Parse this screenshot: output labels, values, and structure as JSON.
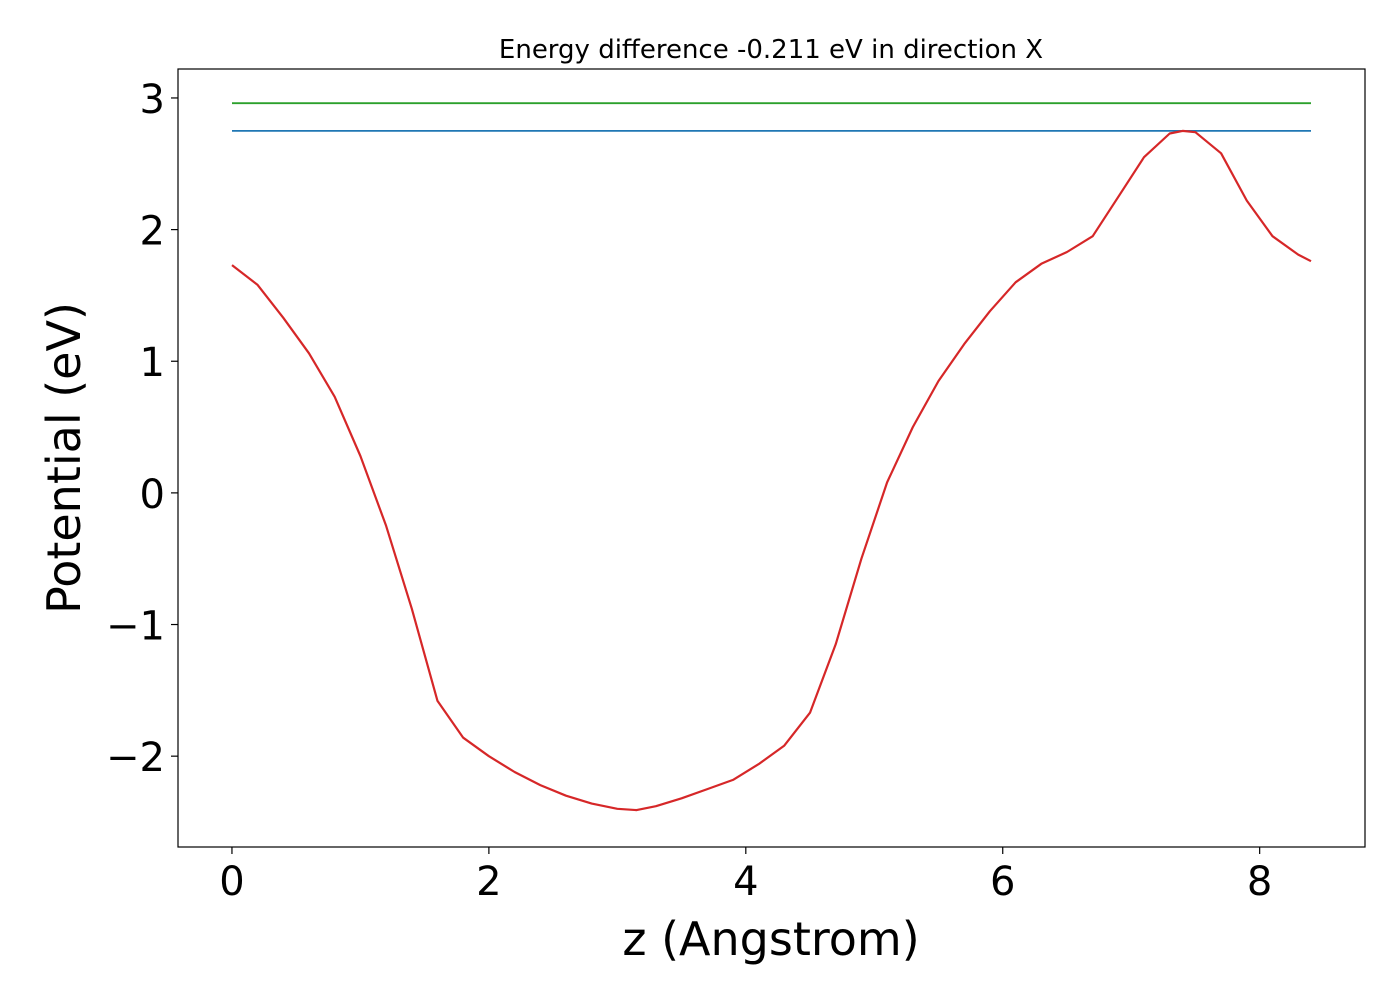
{
  "chart_data": {
    "type": "line",
    "title": "Energy difference -0.211 eV in direction X",
    "xlabel": "z (Angstrom)",
    "ylabel": "Potential (eV)",
    "xlim": [
      -0.42,
      8.82
    ],
    "ylim": [
      -2.69,
      3.22
    ],
    "xticks": [
      0,
      2,
      4,
      6,
      8
    ],
    "xtick_labels": [
      "0",
      "2",
      "4",
      "6",
      "8"
    ],
    "yticks": [
      -2,
      -1,
      0,
      1,
      2,
      3
    ],
    "ytick_labels": [
      "−2",
      "−1",
      "0",
      "1",
      "2",
      "3"
    ],
    "grid": false,
    "series": [
      {
        "color": "#2ca02c",
        "x": [
          0,
          8.4
        ],
        "y": [
          2.96,
          2.96
        ]
      },
      {
        "color": "#1f77b4",
        "x": [
          0,
          8.4
        ],
        "y": [
          2.75,
          2.75
        ]
      },
      {
        "color": "#d62728",
        "x": [
          0,
          0.2,
          0.4,
          0.6,
          0.8,
          1.0,
          1.2,
          1.4,
          1.6,
          1.8,
          2.0,
          2.2,
          2.4,
          2.6,
          2.8,
          3.0,
          3.15,
          3.3,
          3.5,
          3.7,
          3.9,
          4.1,
          4.3,
          4.5,
          4.7,
          4.9,
          5.1,
          5.3,
          5.5,
          5.7,
          5.9,
          6.1,
          6.3,
          6.5,
          6.7,
          6.9,
          7.1,
          7.3,
          7.4,
          7.5,
          7.7,
          7.9,
          8.1,
          8.3,
          8.4
        ],
        "y": [
          1.73,
          1.58,
          1.33,
          1.06,
          0.73,
          0.28,
          -0.25,
          -0.88,
          -1.58,
          -1.86,
          -2.0,
          -2.12,
          -2.22,
          -2.3,
          -2.36,
          -2.4,
          -2.41,
          -2.38,
          -2.32,
          -2.25,
          -2.18,
          -2.06,
          -1.92,
          -1.67,
          -1.15,
          -0.5,
          0.08,
          0.5,
          0.85,
          1.13,
          1.38,
          1.6,
          1.74,
          1.83,
          1.95,
          2.25,
          2.55,
          2.73,
          2.75,
          2.74,
          2.58,
          2.22,
          1.95,
          1.81,
          1.76
        ]
      }
    ]
  }
}
